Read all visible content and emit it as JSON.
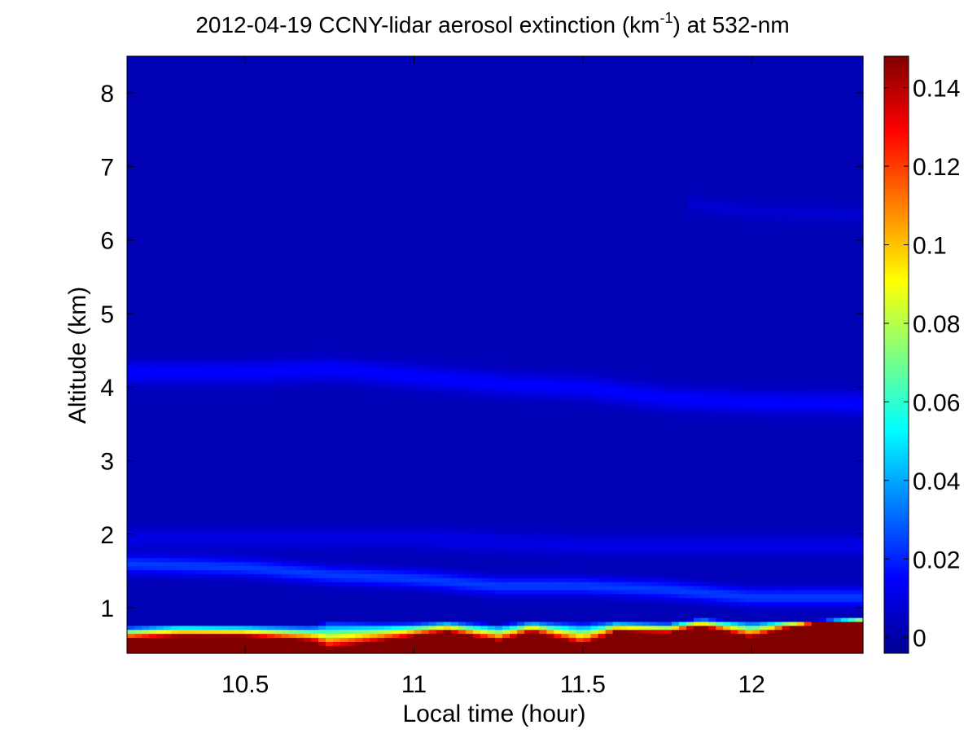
{
  "chart_data": {
    "type": "heatmap",
    "title": {
      "prefix": "2012-04-19 CCNY-lidar aerosol extinction (km",
      "superscript": "-1",
      "suffix": ") at 532-nm"
    },
    "xlabel": "Local time (hour)",
    "ylabel": "Altitude (km)",
    "xlim": [
      10.15,
      12.33
    ],
    "ylim": [
      0.38,
      8.5
    ],
    "x_ticks": [
      10.5,
      11,
      11.5,
      12
    ],
    "x_tick_labels": [
      "10.5",
      "11",
      "11.5",
      "12"
    ],
    "y_ticks": [
      1,
      2,
      3,
      4,
      5,
      6,
      7,
      8
    ],
    "y_tick_labels": [
      "1",
      "2",
      "3",
      "4",
      "5",
      "6",
      "7",
      "8"
    ],
    "colorbar": {
      "colormap": "jet",
      "range": [
        -0.004,
        0.148
      ],
      "ticks": [
        0,
        0.02,
        0.04,
        0.06,
        0.08,
        0.1,
        0.12,
        0.14
      ],
      "tick_labels": [
        "0",
        "0.02",
        "0.04",
        "0.06",
        "0.08",
        "0.1",
        "0.12",
        "0.14"
      ]
    },
    "field": {
      "background_extinction": 0.004,
      "layers": [
        {
          "x": [
            10.15,
            10.5,
            10.75,
            11.0,
            11.25,
            11.5,
            11.75,
            12.0,
            12.33
          ],
          "altitude": [
            4.2,
            4.2,
            4.25,
            4.15,
            4.05,
            4.0,
            3.85,
            3.8,
            3.78
          ],
          "width": 0.16,
          "peak": 0.011
        },
        {
          "x": [
            10.15,
            10.5,
            10.75,
            11.0,
            11.25,
            11.5,
            11.75,
            12.0,
            12.33
          ],
          "altitude": [
            1.6,
            1.55,
            1.45,
            1.4,
            1.3,
            1.3,
            1.25,
            1.15,
            1.15
          ],
          "width": 0.12,
          "peak": 0.02
        },
        {
          "x": [
            10.15,
            10.5,
            10.75,
            11.0,
            11.25,
            11.5,
            11.75,
            12.0,
            12.33
          ],
          "altitude": [
            1.95,
            1.95,
            1.95,
            1.95,
            1.9,
            1.85,
            1.85,
            1.85,
            1.85
          ],
          "width": 0.15,
          "peak": 0.007
        },
        {
          "x": [
            11.8,
            12.0,
            12.33
          ],
          "altitude": [
            6.5,
            6.4,
            6.35
          ],
          "width": 0.12,
          "peak": 0.004
        }
      ],
      "boundary_layer": {
        "x": [
          10.15,
          10.3,
          10.5,
          10.7,
          10.75,
          10.9,
          11.0,
          11.1,
          11.25,
          11.35,
          11.5,
          11.6,
          11.75,
          11.85,
          12.0,
          12.1,
          12.2,
          12.33
        ],
        "top": [
          0.75,
          0.78,
          0.77,
          0.76,
          0.82,
          0.8,
          0.8,
          0.82,
          0.78,
          0.82,
          0.8,
          0.82,
          0.8,
          0.86,
          0.82,
          0.84,
          0.84,
          0.86
        ],
        "core_top": [
          0.58,
          0.62,
          0.62,
          0.55,
          0.45,
          0.55,
          0.62,
          0.68,
          0.55,
          0.68,
          0.5,
          0.68,
          0.66,
          0.75,
          0.6,
          0.72,
          0.8,
          0.82
        ],
        "core_value": 0.148
      }
    }
  }
}
